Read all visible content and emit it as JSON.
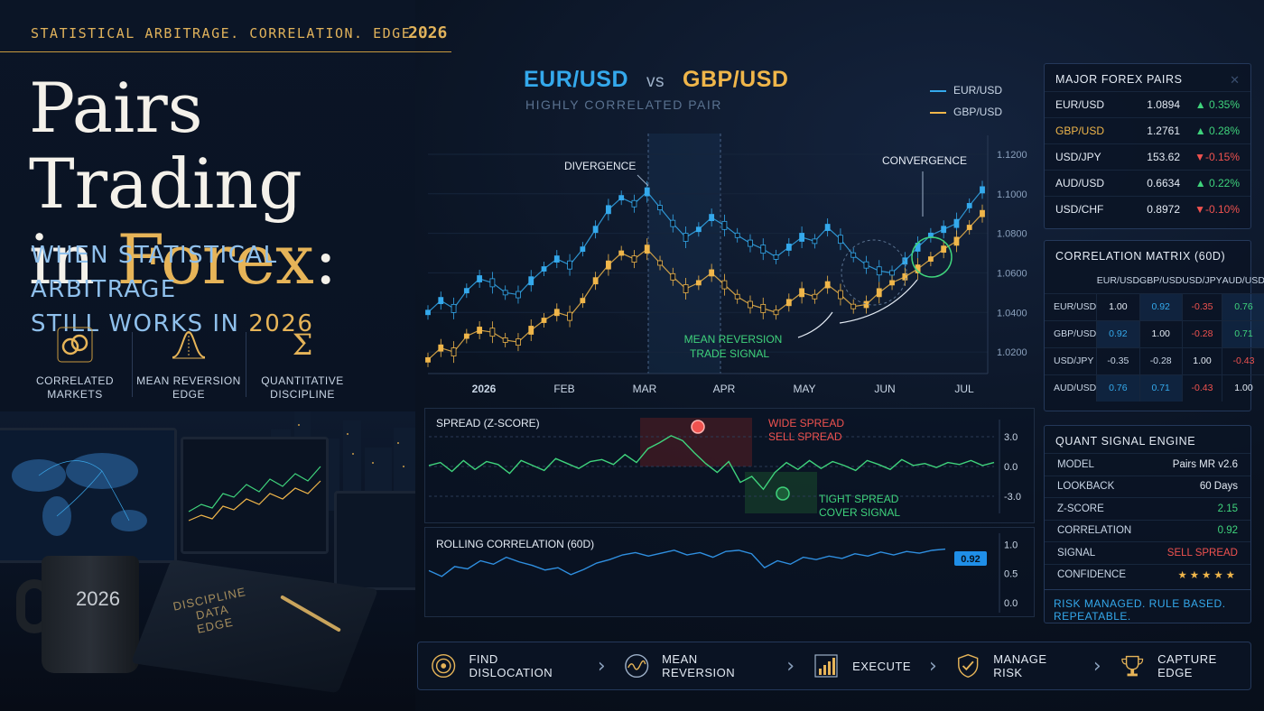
{
  "header": {
    "tagline": "STATISTICAL ARBITRAGE.  CORRELATION.  EDGE.",
    "year": "2026",
    "title_line1": "Pairs Trading",
    "title_line2_a": "in ",
    "title_line2_b": "Forex",
    "title_line2_c": ":",
    "subtitle_line1": "WHEN STATISTICAL ARBITRAGE",
    "subtitle_line2_a": "STILL WORKS IN ",
    "subtitle_line2_b": "2026"
  },
  "features": [
    {
      "icon": "linked-rings-icon",
      "line1": "CORRELATED",
      "line2": "MARKETS"
    },
    {
      "icon": "bell-curve-icon",
      "line1": "MEAN REVERSION",
      "line2": "EDGE"
    },
    {
      "icon": "sigma-icon",
      "line1": "QUANTITATIVE",
      "line2": "DISCIPLINE"
    }
  ],
  "scene": {
    "mug_text": "2026",
    "book_line1": "DISCIPLINE",
    "book_line2": "DATA",
    "book_line3": "EDGE"
  },
  "main_chart": {
    "pair_a": "EUR/USD",
    "vs": "vs",
    "pair_b": "GBP/USD",
    "subtitle": "HIGHLY CORRELATED PAIR",
    "legend": [
      {
        "name": "EUR/USD",
        "color": "#34a9ec"
      },
      {
        "name": "GBP/USD",
        "color": "#f0b64a"
      }
    ],
    "annotations": {
      "divergence": "DIVERGENCE",
      "convergence": "CONVERGENCE",
      "signal_line1": "MEAN REVERSION",
      "signal_line2": "TRADE SIGNAL"
    }
  },
  "spread_panel": {
    "title": "SPREAD (Z-SCORE)",
    "wide_line1": "WIDE SPREAD",
    "wide_line2": "SELL SPREAD",
    "tight_line1": "TIGHT SPREAD",
    "tight_line2": "COVER SIGNAL"
  },
  "corr_panel": {
    "title": "ROLLING CORRELATION (60D)",
    "current": "0.92"
  },
  "chart_data": [
    {
      "type": "line",
      "title": "EUR/USD vs GBP/USD",
      "x_ticks": [
        "2026",
        "FEB",
        "MAR",
        "APR",
        "MAY",
        "JUN",
        "JUL"
      ],
      "y_ticks": [
        "1.1200",
        "1.1000",
        "1.0800",
        "1.0600",
        "1.0400",
        "1.0200"
      ],
      "ylim": [
        1.01,
        1.125
      ],
      "series": [
        {
          "name": "EUR/USD",
          "color": "#34a9ec",
          "values": [
            1.04,
            1.046,
            1.042,
            1.051,
            1.057,
            1.055,
            1.05,
            1.049,
            1.056,
            1.062,
            1.067,
            1.064,
            1.072,
            1.082,
            1.092,
            1.098,
            1.095,
            1.101,
            1.093,
            1.085,
            1.078,
            1.082,
            1.088,
            1.084,
            1.079,
            1.075,
            1.072,
            1.068,
            1.073,
            1.078,
            1.076,
            1.083,
            1.077,
            1.069,
            1.064,
            1.061,
            1.06,
            1.066,
            1.073,
            1.079,
            1.082,
            1.085,
            1.094,
            1.102
          ]
        },
        {
          "name": "GBP/USD",
          "color": "#f0b64a",
          "values": [
            1.016,
            1.022,
            1.02,
            1.028,
            1.031,
            1.03,
            1.026,
            1.025,
            1.031,
            1.036,
            1.04,
            1.038,
            1.046,
            1.056,
            1.064,
            1.07,
            1.067,
            1.072,
            1.065,
            1.058,
            1.052,
            1.055,
            1.06,
            1.054,
            1.048,
            1.044,
            1.042,
            1.04,
            1.045,
            1.05,
            1.048,
            1.054,
            1.049,
            1.043,
            1.044,
            1.05,
            1.055,
            1.058,
            1.062,
            1.067,
            1.072,
            1.076,
            1.083,
            1.09
          ]
        }
      ]
    },
    {
      "type": "line",
      "title": "SPREAD (Z-SCORE)",
      "y_ticks": [
        "3.0",
        "0.0",
        "-3.0"
      ],
      "ylim": [
        -4,
        4
      ],
      "series": [
        {
          "name": "Z-score",
          "color": "#3fd37c",
          "values": [
            0.1,
            0.4,
            -0.5,
            0.6,
            -0.3,
            0.5,
            0.2,
            -0.7,
            0.6,
            0.1,
            -0.4,
            0.8,
            0.3,
            -0.2,
            0.5,
            0.7,
            0.2,
            1.2,
            0.4,
            1.8,
            2.4,
            3.1,
            2.6,
            1.4,
            0.3,
            -0.6,
            0.5,
            -1.6,
            -1.0,
            -2.3,
            -0.6,
            0.4,
            -0.3,
            0.6,
            -0.2,
            0.5,
            0.1,
            -0.4,
            0.6,
            0.2,
            -0.3,
            0.7,
            0.1,
            0.3,
            -0.1,
            0.4,
            0.2,
            0.6,
            0.1,
            0.4
          ]
        }
      ]
    },
    {
      "type": "line",
      "title": "ROLLING CORRELATION (60D)",
      "y_ticks": [
        "1.0",
        "0.5",
        "0.0"
      ],
      "ylim": [
        -0.05,
        1.1
      ],
      "series": [
        {
          "name": "Rolling correlation",
          "color": "#2f8fe0",
          "values": [
            0.55,
            0.45,
            0.62,
            0.58,
            0.72,
            0.66,
            0.78,
            0.7,
            0.64,
            0.56,
            0.6,
            0.48,
            0.57,
            0.68,
            0.74,
            0.82,
            0.86,
            0.8,
            0.85,
            0.9,
            0.82,
            0.86,
            0.78,
            0.88,
            0.9,
            0.84,
            0.6,
            0.72,
            0.66,
            0.78,
            0.74,
            0.8,
            0.76,
            0.84,
            0.8,
            0.87,
            0.82,
            0.88,
            0.85,
            0.9,
            0.92
          ]
        }
      ]
    }
  ],
  "major_pairs": {
    "title": "MAJOR FOREX PAIRS",
    "rows": [
      {
        "name": "EUR/USD",
        "price": "1.0894",
        "change": "▲ 0.35%",
        "dir": "up",
        "color": "#e4ebf4"
      },
      {
        "name": "GBP/USD",
        "price": "1.2761",
        "change": "▲ 0.28%",
        "dir": "up",
        "color": "#f0b64a"
      },
      {
        "name": "USD/JPY",
        "price": "153.62",
        "change": "▼-0.15%",
        "dir": "down",
        "color": "#e4ebf4"
      },
      {
        "name": "AUD/USD",
        "price": "0.6634",
        "change": "▲ 0.22%",
        "dir": "up",
        "color": "#e4ebf4"
      },
      {
        "name": "USD/CHF",
        "price": "0.8972",
        "change": "▼-0.10%",
        "dir": "down",
        "color": "#e4ebf4"
      }
    ]
  },
  "correlation_matrix": {
    "title": "CORRELATION MATRIX (60D)",
    "headers": [
      "EUR/USD",
      "GBP/USD",
      "USD/JPY",
      "AUD/USD"
    ],
    "rows": [
      {
        "label": "EUR/USD",
        "cells": [
          "1.00",
          "0.92",
          "-0.35",
          "0.76"
        ]
      },
      {
        "label": "GBP/USD",
        "cells": [
          "0.92",
          "1.00",
          "-0.28",
          "0.71"
        ]
      },
      {
        "label": "USD/JPY",
        "cells": [
          "-0.35",
          "-0.28",
          "1.00",
          "-0.43"
        ]
      },
      {
        "label": "AUD/USD",
        "cells": [
          "0.76",
          "0.71",
          "-0.43",
          "1.00"
        ]
      }
    ]
  },
  "quant_engine": {
    "title": "QUANT SIGNAL ENGINE",
    "rows": [
      {
        "key": "MODEL",
        "value": "Pairs MR v2.6",
        "color": "#e4ebf4"
      },
      {
        "key": "LOOKBACK",
        "value": "60 Days",
        "color": "#e4ebf4"
      },
      {
        "key": "Z-SCORE",
        "value": "2.15",
        "color": "#3fd37c"
      },
      {
        "key": "CORRELATION",
        "value": "0.92",
        "color": "#3fd37c"
      },
      {
        "key": "SIGNAL",
        "value": "SELL SPREAD",
        "color": "#f0524f"
      },
      {
        "key": "CONFIDENCE",
        "value": "★★★★★",
        "color": "#f0b64a"
      }
    ],
    "footer": "RISK MANAGED. RULE BASED. REPEATABLE."
  },
  "workflow": [
    {
      "icon": "target-icon",
      "label": "FIND DISLOCATION"
    },
    {
      "icon": "wave-icon",
      "label": "MEAN REVERSION"
    },
    {
      "icon": "bar-growth-icon",
      "label": "EXECUTE"
    },
    {
      "icon": "shield-check-icon",
      "label": "MANAGE RISK"
    },
    {
      "icon": "trophy-icon",
      "label": "CAPTURE EDGE"
    }
  ]
}
